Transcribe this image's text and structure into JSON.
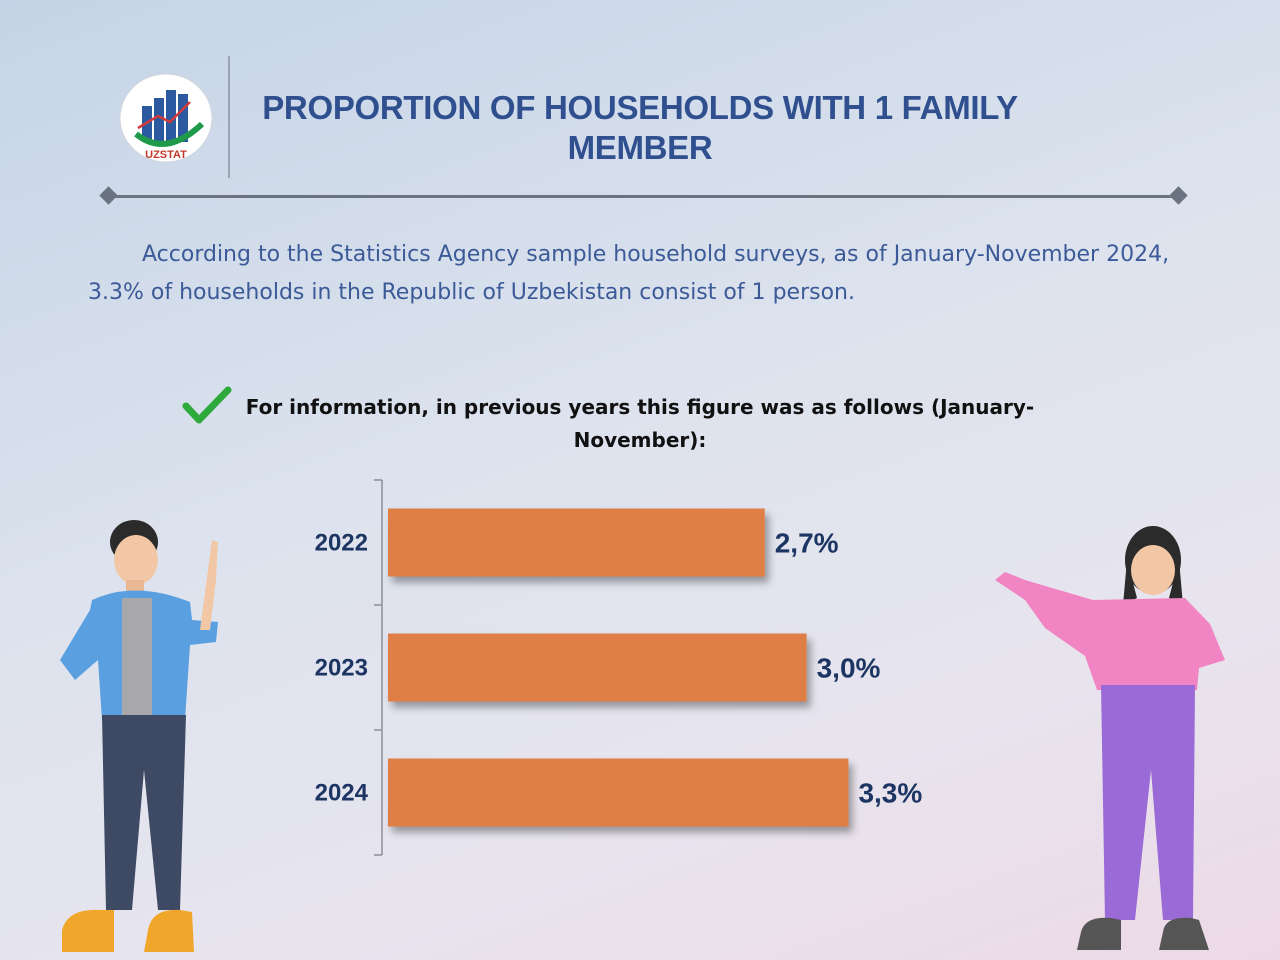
{
  "logo": {
    "text": "UZSTAT"
  },
  "title": "PROPORTION OF HOUSEHOLDS WITH 1 FAMILY MEMBER",
  "intro": "According to the Statistics Agency sample household surveys, as of January-November 2024, 3.3% of households in the Republic of Uzbekistan consist of 1 person.",
  "note": "For information, in previous years this figure was as follows (January-November):",
  "icons": [
    "checkmark-icon",
    "uzstat-logo"
  ],
  "colors": {
    "bar": "#e07f45",
    "title": "#2f4f8f",
    "label": "#1d3562",
    "text": "#3b5a97"
  },
  "chart_data": {
    "type": "bar",
    "orientation": "horizontal",
    "categories": [
      "2022",
      "2023",
      "2024"
    ],
    "values": [
      2.7,
      3.0,
      3.3
    ],
    "value_labels": [
      "2,7%",
      "3,0%",
      "3,3%"
    ],
    "xlim": [
      0,
      4.3
    ],
    "grid": false
  }
}
